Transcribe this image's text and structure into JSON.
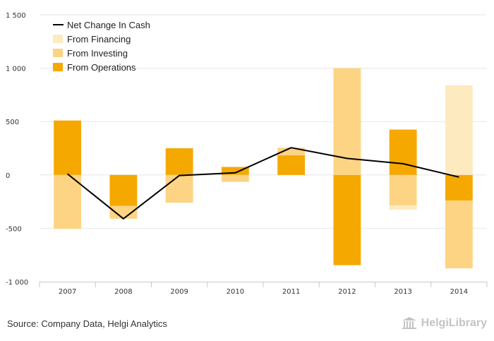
{
  "chart_data": {
    "type": "bar",
    "stacked": true,
    "categories": [
      "2007",
      "2008",
      "2009",
      "2010",
      "2011",
      "2012",
      "2013",
      "2014"
    ],
    "series": [
      {
        "name": "From Operations",
        "kind": "bar",
        "color": "#f5a800",
        "values": [
          510,
          -290,
          250,
          75,
          185,
          -845,
          425,
          -240
        ]
      },
      {
        "name": "From Investing",
        "kind": "bar",
        "color": "#fdd483",
        "values": [
          -505,
          -120,
          -260,
          -65,
          70,
          1000,
          -285,
          -635
        ]
      },
      {
        "name": "From Financing",
        "kind": "bar",
        "color": "#feeabf",
        "values": [
          0,
          0,
          0,
          0,
          0,
          0,
          -40,
          840
        ]
      },
      {
        "name": "Net Change In Cash",
        "kind": "line",
        "color": "#000000",
        "values": [
          10,
          -410,
          -5,
          20,
          255,
          155,
          105,
          -20
        ]
      }
    ],
    "yticks": [
      1500,
      1000,
      500,
      0,
      -500,
      -1000
    ],
    "ytick_labels": [
      "1 500",
      "1 000",
      "500",
      "0",
      "-500",
      "-1 000"
    ],
    "ylim": [
      -1000,
      1500
    ],
    "legend_position": "top-left",
    "grid": true
  },
  "legend": [
    {
      "label": "Net Change In Cash",
      "type": "line",
      "color": "#000000"
    },
    {
      "label": "From Financing",
      "type": "box",
      "color": "#feeabf"
    },
    {
      "label": "From Investing",
      "type": "box",
      "color": "#fdd483"
    },
    {
      "label": "From Operations",
      "type": "box",
      "color": "#f5a800"
    }
  ],
  "footer": {
    "source": "Source: Company Data, Helgi Analytics",
    "brand": "HelgiLibrary"
  }
}
